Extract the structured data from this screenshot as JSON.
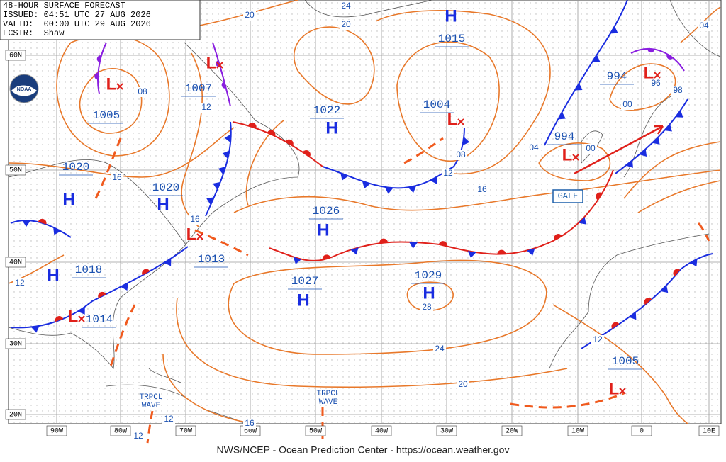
{
  "header": {
    "lines": [
      "48-HOUR SURFACE FORECAST",
      "ISSUED: 04:51 UTC 27 AUG 2026",
      "VALID:  00:00 UTC 29 AUG 2026",
      "FCSTR:  Shaw"
    ]
  },
  "centers": [
    {
      "symbol": "H",
      "pressure": 1015
    },
    {
      "symbol": "L",
      "pressure": 1005
    },
    {
      "symbol": "L",
      "pressure": 1007
    },
    {
      "symbol": "H",
      "pressure": 1022
    },
    {
      "symbol": "L",
      "pressure": 1004
    },
    {
      "symbol": "L",
      "pressure": 994
    },
    {
      "symbol": "L",
      "pressure": 994
    },
    {
      "symbol": "H",
      "pressure": 1020
    },
    {
      "symbol": "H",
      "pressure": 1020
    },
    {
      "symbol": "H",
      "pressure": 1026
    },
    {
      "symbol": "L",
      "pressure": 1013
    },
    {
      "symbol": "H",
      "pressure": 1018
    },
    {
      "symbol": "H",
      "pressure": 1027
    },
    {
      "symbol": "H",
      "pressure": 1029
    },
    {
      "symbol": "L",
      "pressure": 1014
    },
    {
      "symbol": "L",
      "pressure": 1005
    }
  ],
  "isobar_labels": [
    "20",
    "24",
    "20",
    "04",
    "08",
    "12",
    "98",
    "00",
    "96",
    "08",
    "04",
    "00",
    "16",
    "12",
    "16",
    "16",
    "12",
    "28",
    "24",
    "20",
    "12",
    "12",
    "16",
    "12"
  ],
  "wave_labels": [
    {
      "lines": [
        "TRPCL",
        "WAVE"
      ]
    },
    {
      "lines": [
        "TRPCL",
        "WAVE"
      ]
    }
  ],
  "gale": "GALE",
  "lat_labels": [
    "60N",
    "50N",
    "40N",
    "30N",
    "20N"
  ],
  "lon_labels": [
    "90W",
    "80W",
    "70W",
    "60W",
    "50W",
    "40W",
    "30W",
    "20W",
    "10W",
    "0",
    "10E"
  ],
  "logo": "NOAA",
  "footer": "NWS/NCEP - Ocean Prediction Center - https://ocean.weather.gov"
}
